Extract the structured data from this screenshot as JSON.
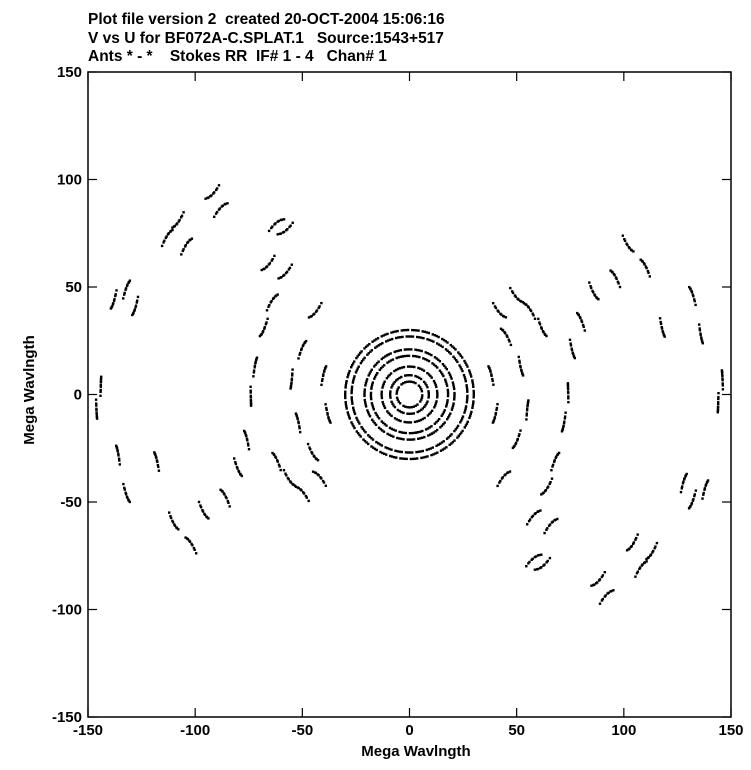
{
  "header": {
    "line1": "Plot file version 2  created 20-OCT-2004 15:06:16",
    "line2": "V vs U for BF072A-C.SPLAT.1   Source:1543+517",
    "line3": "Ants * - *    Stokes RR  IF# 1 - 4   Chan# 1"
  },
  "chart_data": {
    "type": "scatter",
    "title": "",
    "xlabel": "Mega Wavlngth",
    "ylabel": "Mega Wavlngth",
    "xlim": [
      -150,
      150
    ],
    "ylim": [
      -150,
      150
    ],
    "xticks": [
      -150,
      -100,
      -50,
      0,
      50,
      100,
      150
    ],
    "yticks": [
      -150,
      -100,
      -50,
      0,
      50,
      100,
      150
    ],
    "grid": false,
    "symmetry": "Hermitian: every (u, v) is also plotted at (-u, -v)",
    "rings": [
      {
        "radius": 6,
        "arc_start_deg": -80,
        "arc_end_deg": 100
      },
      {
        "radius": 9,
        "arc_start_deg": 140,
        "arc_end_deg": 320
      },
      {
        "radius": 13,
        "arc_start_deg": -70,
        "arc_end_deg": 110
      },
      {
        "radius": 18,
        "arc_start_deg": 100,
        "arc_end_deg": 280
      },
      {
        "radius": 21,
        "arc_start_deg": -60,
        "arc_end_deg": 120
      },
      {
        "radius": 27,
        "arc_start_deg": 120,
        "arc_end_deg": 300
      },
      {
        "radius": 30,
        "arc_start_deg": -40,
        "arc_end_deg": 140
      }
    ],
    "track_arcs": [
      {
        "u": 58,
        "v": -76
      },
      {
        "u": 62,
        "v": -80
      },
      {
        "u": 66,
        "v": -60
      },
      {
        "u": 88,
        "v": -87
      },
      {
        "u": 92,
        "v": -93
      },
      {
        "u": 104,
        "v": -70
      },
      {
        "u": 108,
        "v": -80
      },
      {
        "u": 113,
        "v": -74
      },
      {
        "u": 128,
        "v": -40
      },
      {
        "u": 132,
        "v": -50
      },
      {
        "u": 138,
        "v": -43
      },
      {
        "u": 144,
        "v": -5
      },
      {
        "u": 146,
        "v": 8
      },
      {
        "u": 136,
        "v": 27
      },
      {
        "u": 132,
        "v": 47
      },
      {
        "u": 118,
        "v": 30
      },
      {
        "u": 110,
        "v": 60
      },
      {
        "u": 102,
        "v": 69
      },
      {
        "u": 96,
        "v": 55
      },
      {
        "u": 86,
        "v": 47
      },
      {
        "u": 80,
        "v": 35
      },
      {
        "u": 76,
        "v": 20
      },
      {
        "u": 74,
        "v": 2
      },
      {
        "u": 72,
        "v": -14
      },
      {
        "u": 68,
        "v": -30
      },
      {
        "u": 64,
        "v": -44
      },
      {
        "u": 58,
        "v": -56
      },
      {
        "u": 62,
        "v": 30
      },
      {
        "u": 56,
        "v": 40
      },
      {
        "u": 50,
        "v": 45
      },
      {
        "u": 45,
        "v": 28
      },
      {
        "u": 52,
        "v": 12
      },
      {
        "u": 55,
        "v": -6
      },
      {
        "u": 50,
        "v": -22
      },
      {
        "u": 44,
        "v": -38
      },
      {
        "u": 40,
        "v": -10
      },
      {
        "u": 38,
        "v": 10
      },
      {
        "u": 42,
        "v": 38
      }
    ]
  }
}
